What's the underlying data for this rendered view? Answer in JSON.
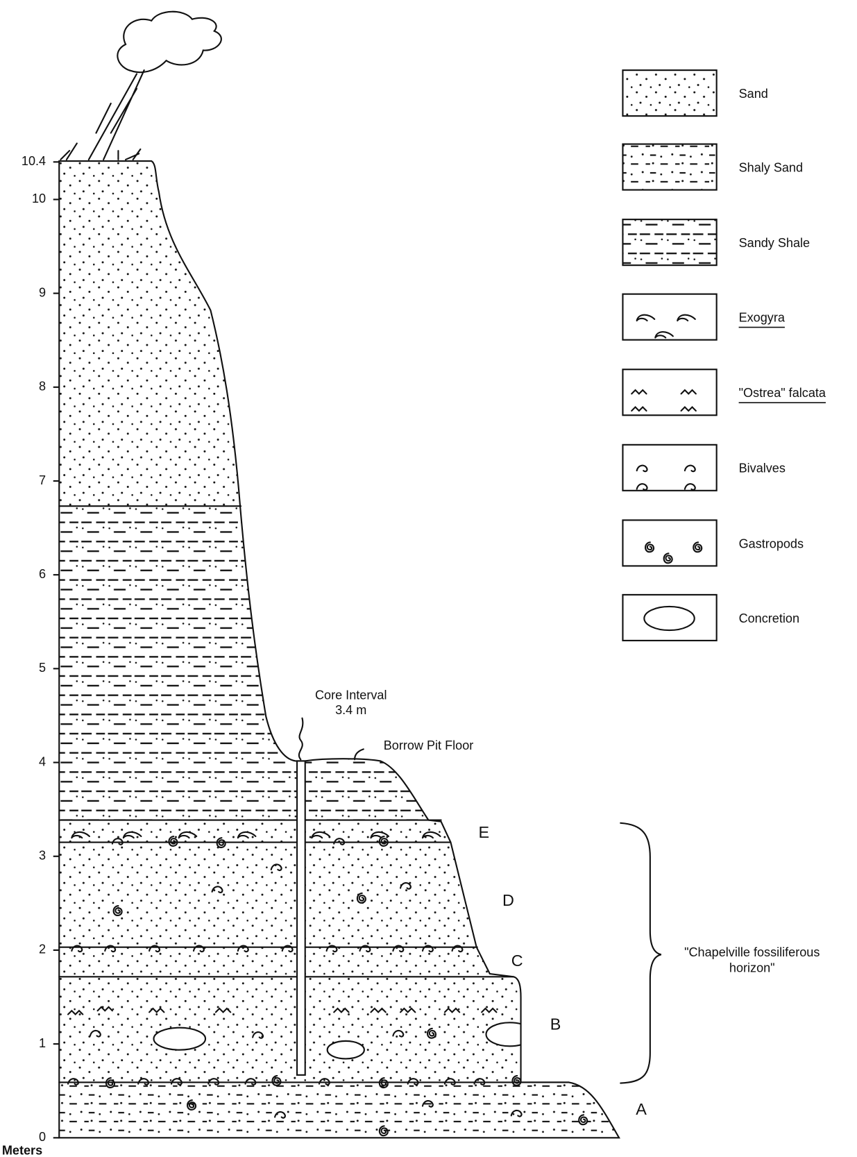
{
  "axis": {
    "unit": "Meters",
    "ticks": [
      0,
      1,
      2,
      3,
      4,
      5,
      6,
      7,
      8,
      9,
      10,
      10.4
    ]
  },
  "legend": [
    "Sand",
    "Shaly Sand",
    "Sandy Shale",
    "Exogyra",
    "\"Ostrea\" falcata",
    "Bivalves",
    "Gastropods",
    "Concretion"
  ],
  "units": [
    "A",
    "B",
    "C",
    "D",
    "E"
  ],
  "annotations": {
    "core_interval": [
      "Core Interval",
      "3.4 m"
    ],
    "borrow_pit": "Borrow Pit Floor",
    "horizon": [
      "\"Chapelville fossiliferous",
      "horizon\""
    ]
  }
}
